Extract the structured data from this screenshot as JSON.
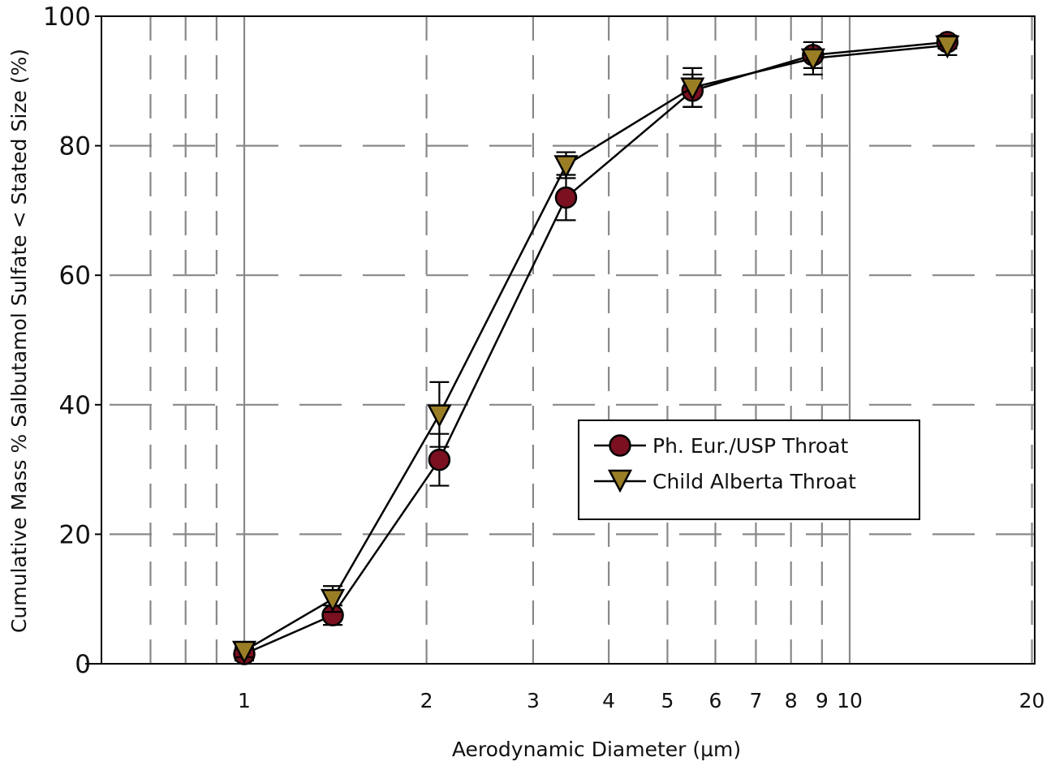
{
  "chart_data": {
    "type": "line",
    "title": "",
    "xlabel": "Aerodynamic Diameter (µm)",
    "ylabel": "Cumulative Mass % Salbutamol Sulfate < Stated Size (%)",
    "xscale": "log",
    "xlim": [
      0.6,
      20
    ],
    "ylim": [
      0,
      100
    ],
    "x_ticks": [
      1,
      2,
      3,
      4,
      5,
      6,
      7,
      8,
      9,
      10,
      20
    ],
    "x_tick_labels": [
      "1",
      "2",
      "3",
      "4",
      "5",
      "6",
      "7",
      "8",
      "9",
      "10",
      "20"
    ],
    "x_minor_gridlines": [
      0.7,
      0.8,
      0.9,
      2,
      3,
      4,
      5,
      6,
      7,
      8,
      9,
      20
    ],
    "x_major_gridlines": [
      1,
      10
    ],
    "y_ticks": [
      0,
      20,
      40,
      60,
      80,
      100
    ],
    "y_tick_labels": [
      "0",
      "20",
      "40",
      "60",
      "80",
      "100"
    ],
    "grid": true,
    "legend_position": "center-right",
    "series": [
      {
        "name": "Ph. Eur./USP Throat",
        "marker": "circle",
        "color": "#7a1020",
        "points": [
          {
            "x": 1.0,
            "y": 1.5,
            "err": 1.0
          },
          {
            "x": 1.4,
            "y": 7.5,
            "err": 1.5
          },
          {
            "x": 2.1,
            "y": 31.5,
            "err": 4.0
          },
          {
            "x": 3.4,
            "y": 72.0,
            "err": 3.5
          },
          {
            "x": 5.5,
            "y": 88.5,
            "err": 2.5
          },
          {
            "x": 8.7,
            "y": 94.0,
            "err": 2.0
          },
          {
            "x": 14.5,
            "y": 96.0,
            "err": 1.0
          }
        ]
      },
      {
        "name": "Child Alberta Throat",
        "marker": "triangle-down",
        "color": "#9a7e26",
        "points": [
          {
            "x": 1.0,
            "y": 2.0,
            "err": 1.0
          },
          {
            "x": 1.4,
            "y": 10.0,
            "err": 2.0
          },
          {
            "x": 2.1,
            "y": 38.5,
            "err": 5.0
          },
          {
            "x": 3.4,
            "y": 77.0,
            "err": 2.0
          },
          {
            "x": 5.5,
            "y": 89.0,
            "err": 3.0
          },
          {
            "x": 8.7,
            "y": 93.5,
            "err": 2.5
          },
          {
            "x": 14.5,
            "y": 95.5,
            "err": 1.5
          }
        ]
      }
    ]
  }
}
